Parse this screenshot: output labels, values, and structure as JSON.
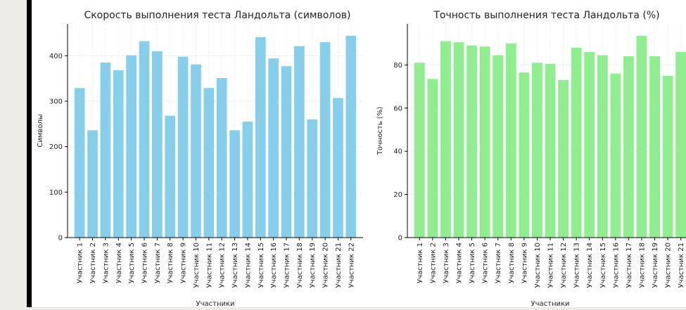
{
  "chart_data": [
    {
      "type": "bar",
      "title": "Скорость выполнения теста Ландольта (символов)",
      "xlabel": "Участники",
      "ylabel": "Символы",
      "ylim": [
        0,
        470
      ],
      "yticks": [
        0,
        100,
        200,
        300,
        400
      ],
      "grid": true,
      "color": "#87ceeb",
      "categories": [
        "Участник 1",
        "Участник 2",
        "Участник 3",
        "Участник 4",
        "Участник 5",
        "Участник 6",
        "Участник 7",
        "Участник 8",
        "Участник 9",
        "Участник 10",
        "Участник 11",
        "Участник 12",
        "Участник 13",
        "Участник 14",
        "Участник 15",
        "Участник 16",
        "Участник 17",
        "Участник 18",
        "Участник 19",
        "Участник 20",
        "Участник 21",
        "Участник 22"
      ],
      "values": [
        329,
        236,
        385,
        368,
        401,
        432,
        410,
        268,
        398,
        381,
        329,
        351,
        236,
        255,
        441,
        394,
        377,
        421,
        260,
        430,
        307,
        444
      ]
    },
    {
      "type": "bar",
      "title": "Точность выполнения теста Ландольта (%)",
      "xlabel": "Участники",
      "ylabel": "Точность (%)",
      "ylim": [
        0,
        99
      ],
      "yticks": [
        0,
        20,
        40,
        60,
        80
      ],
      "grid": true,
      "color": "#90ee90",
      "categories": [
        "Участник 1",
        "Участник 2",
        "Участник 3",
        "Участник 4",
        "Участник 5",
        "Участник 6",
        "Участник 7",
        "Участник 8",
        "Участник 9",
        "Участник 10",
        "Участник 11",
        "Участник 12",
        "Участник 13",
        "Участник 14",
        "Участник 15",
        "Участник 16",
        "Участник 17",
        "Участник 18",
        "Участник 19",
        "Участник 20",
        "Участник 21"
      ],
      "values": [
        81,
        73.5,
        91,
        90.5,
        89,
        88.5,
        84.5,
        90,
        76.5,
        81,
        80.5,
        73,
        88,
        86,
        84.5,
        76,
        84,
        93.5,
        84,
        75,
        86
      ]
    }
  ]
}
